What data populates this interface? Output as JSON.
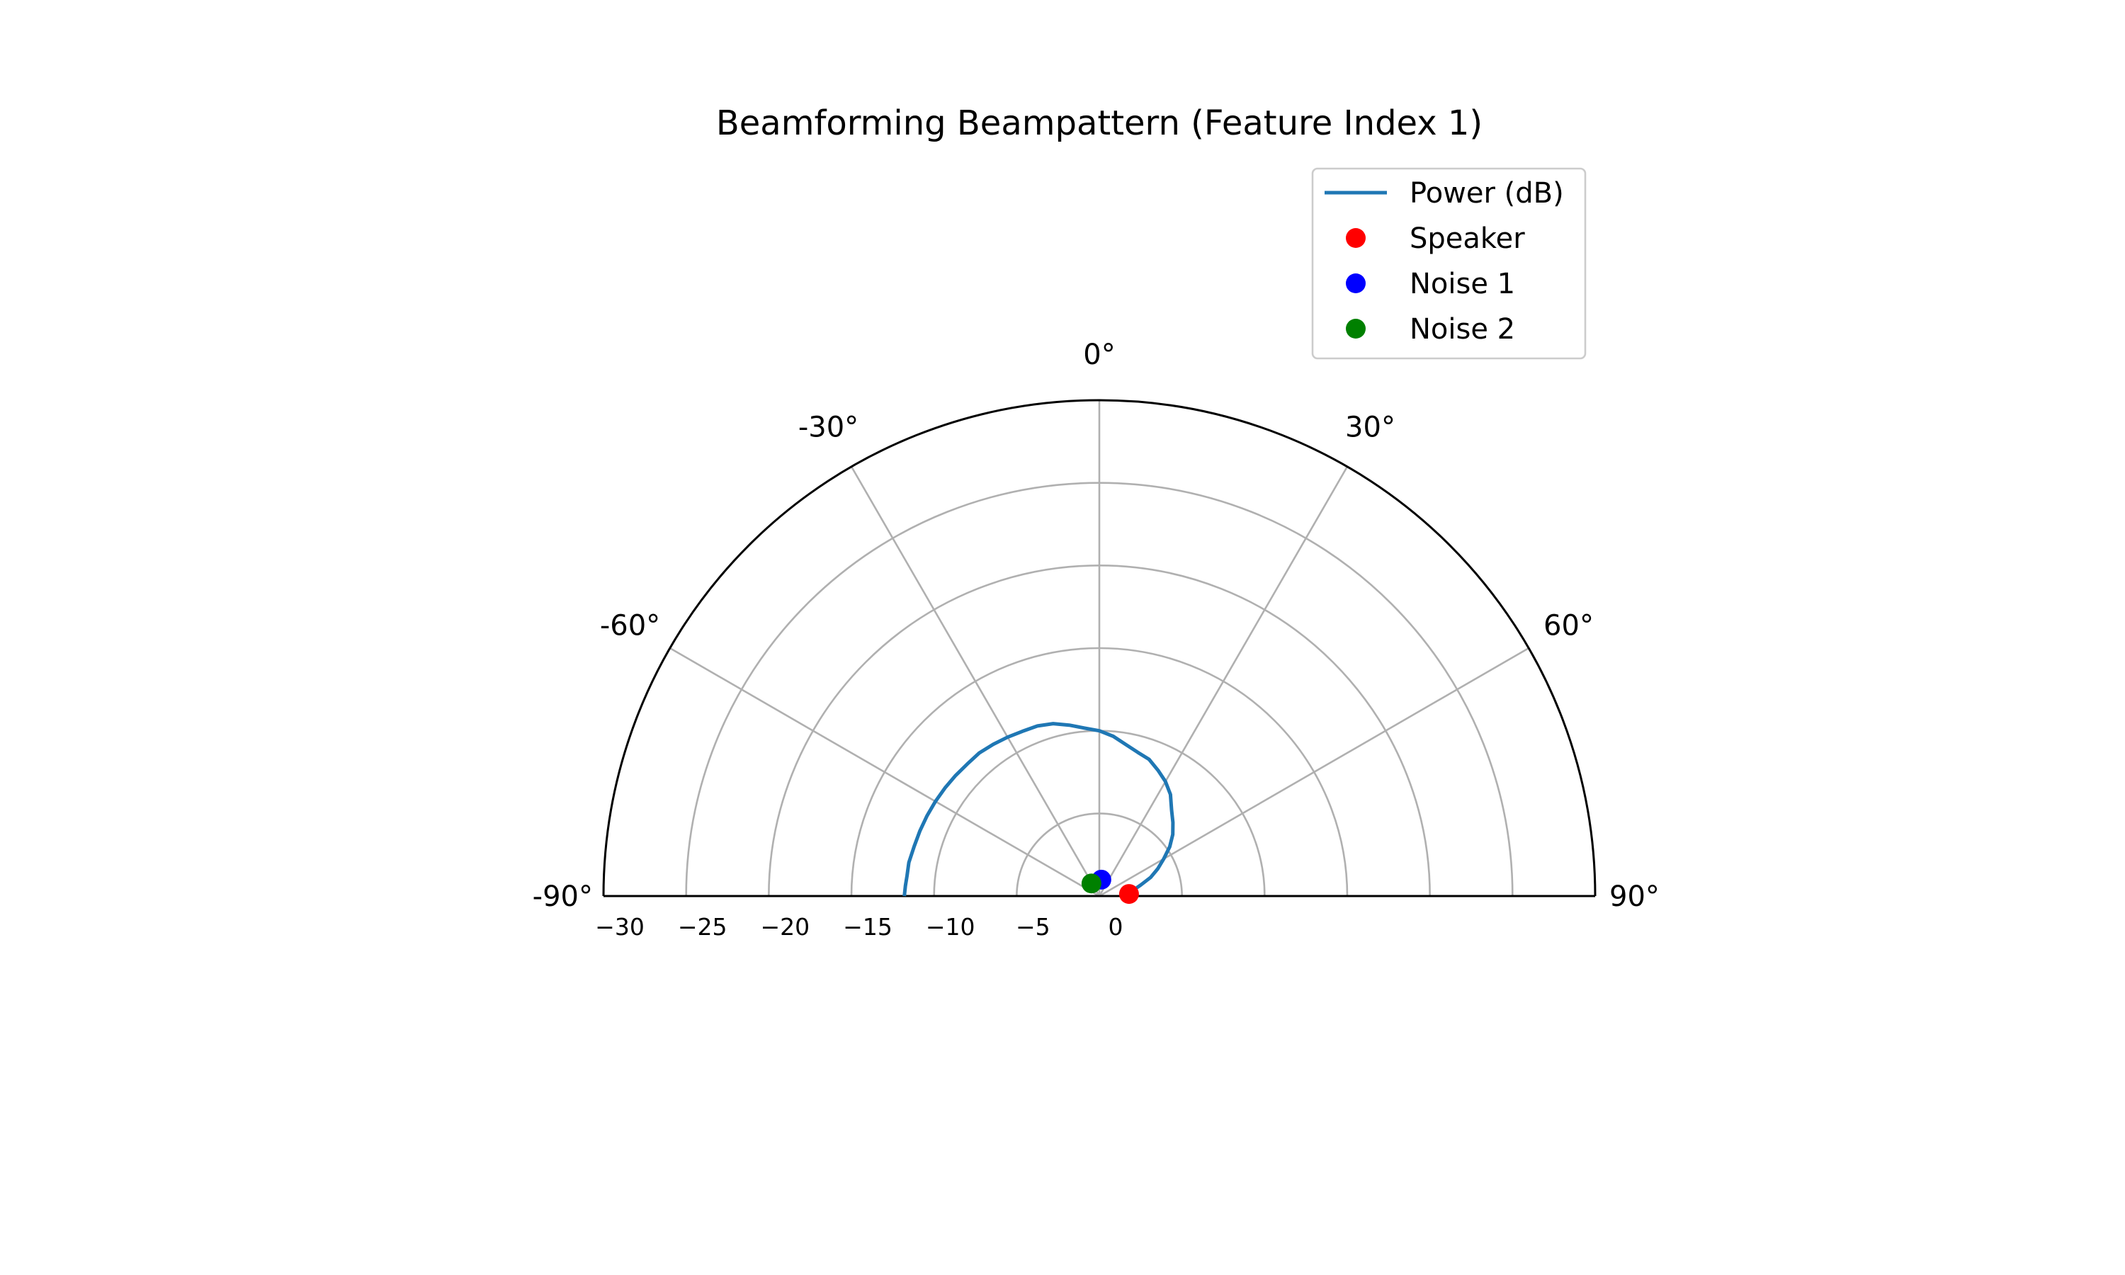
{
  "chart_data": {
    "type": "polar-line",
    "title": "Beamforming Beampattern (Feature Index 1)",
    "theta_range_deg": [
      -90,
      90
    ],
    "theta_zero_location": "top",
    "theta_direction": "clockwise",
    "r_range": [
      -30,
      0
    ],
    "r_direction": "decibel value decreases toward center",
    "r_grid": [
      -25,
      -20,
      -15,
      -10,
      -5,
      0
    ],
    "r_tick_labels": [
      "0",
      "−5",
      "−10",
      "−15",
      "−20",
      "−25",
      "−30"
    ],
    "theta_grid_deg": [
      -90,
      -60,
      -30,
      0,
      30,
      60,
      90
    ],
    "theta_tick_labels": [
      "-90°",
      "-60°",
      "-30°",
      "0°",
      "30°",
      "60°",
      "90°"
    ],
    "grid": true,
    "legend_position": "top-right",
    "series": [
      {
        "name": "Power (dB)",
        "kind": "line",
        "color": "#1f77b4",
        "theta_deg": [
          -90,
          -87,
          -84,
          -80,
          -75,
          -70,
          -65,
          -60,
          -55,
          -50,
          -45,
          -40,
          -35,
          -30,
          -25,
          -20,
          -15,
          -10,
          -5,
          0,
          5,
          10,
          15,
          20,
          25,
          30,
          35,
          40,
          45,
          50,
          55,
          60,
          65,
          70,
          75,
          80,
          85,
          88,
          90
        ],
        "r_db": [
          -11.8,
          -11.75,
          -11.7,
          -11.7,
          -11.6,
          -11.55,
          -11.5,
          -11.45,
          -11.4,
          -11.35,
          -11.3,
          -11.3,
          -11.2,
          -11.1,
          -11.0,
          -10.95,
          -10.8,
          -10.5,
          -10.2,
          -10.0,
          -9.7,
          -9.3,
          -9.0,
          -8.8,
          -8.4,
          -8.0,
          -7.5,
          -6.8,
          -6.3,
          -5.8,
          -5.2,
          -4.5,
          -3.9,
          -3.3,
          -2.6,
          -2.1,
          -1.8,
          -1.75,
          -1.7
        ]
      },
      {
        "name": "Speaker",
        "kind": "marker",
        "color": "#ff0000",
        "theta_deg": [
          86
        ],
        "r_db": [
          -1.8
        ]
      },
      {
        "name": "Noise 1",
        "kind": "marker",
        "color": "#0000ff",
        "theta_deg": [
          7
        ],
        "r_db": [
          -1.0
        ]
      },
      {
        "name": "Noise 2",
        "kind": "marker",
        "color": "#008000",
        "theta_deg": [
          -32
        ],
        "r_db": [
          -0.9
        ]
      }
    ]
  }
}
